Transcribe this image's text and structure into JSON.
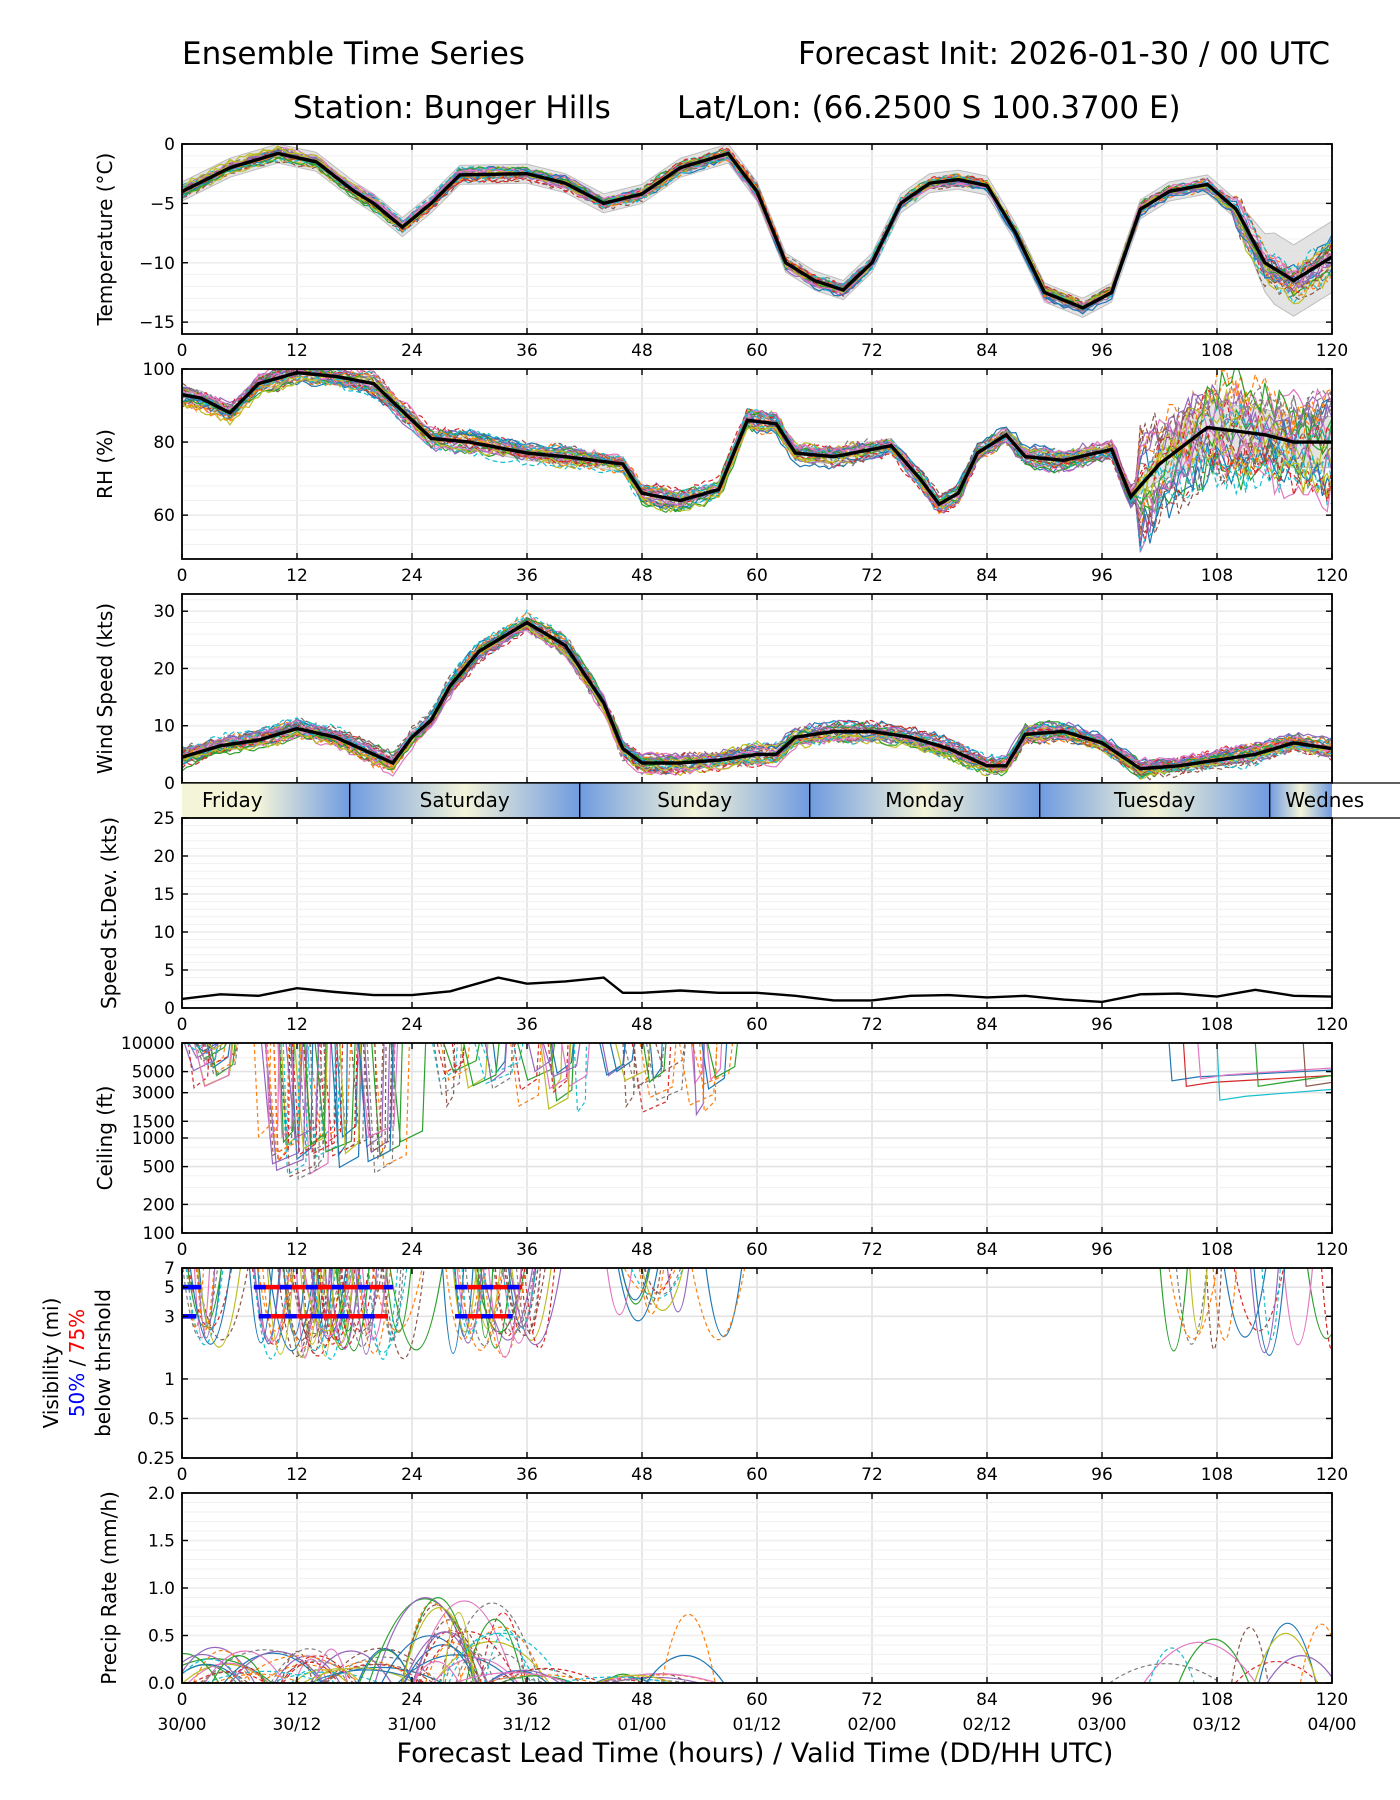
{
  "header": {
    "title_left": "Ensemble Time Series",
    "title_right": "Forecast Init: 2026-01-30 / 00 UTC",
    "station": "Station: Bunger Hills",
    "latlon": "Lat/Lon: (66.2500 S 100.3700 E)"
  },
  "x_axis": {
    "range": [
      0,
      120
    ],
    "ticks": [
      0,
      12,
      24,
      36,
      48,
      60,
      72,
      84,
      96,
      108,
      120
    ],
    "valid_times": [
      "30/00",
      "30/12",
      "31/00",
      "31/12",
      "01/00",
      "01/12",
      "02/00",
      "02/12",
      "03/00",
      "03/12",
      "04/00"
    ],
    "label": "Forecast Lead Time (hours) / Valid Time (DD/HH UTC)"
  },
  "day_bar": {
    "days": [
      {
        "name": "Friday",
        "start": 0,
        "end": 17.5
      },
      {
        "name": "Saturday",
        "start": 17.5,
        "end": 41.5
      },
      {
        "name": "Sunday",
        "start": 41.5,
        "end": 65.5
      },
      {
        "name": "Monday",
        "start": 65.5,
        "end": 89.5
      },
      {
        "name": "Tuesday",
        "start": 89.5,
        "end": 113.5
      },
      {
        "name": "Wednes",
        "start": 113.5,
        "end": 120
      }
    ],
    "colors": {
      "edge": "#6f9be0",
      "mid": "#f4f4d9"
    }
  },
  "colors": {
    "mean": "#000000",
    "spread": "#d9d9d9",
    "grid": "#e3e3e3",
    "vis_50": "#0000ff",
    "vis_75": "#ff0000",
    "members": [
      "#1f77b4",
      "#ff7f0e",
      "#2ca02c",
      "#d62728",
      "#9467bd",
      "#8c564b",
      "#e377c2",
      "#7f7f7f",
      "#bcbd22",
      "#17becf"
    ]
  },
  "chart_data": [
    {
      "id": "temperature",
      "type": "line",
      "ylabel": "Temperature (°C)",
      "ylim": [
        -16,
        0
      ],
      "yticks": [
        0,
        -5,
        -10,
        -15
      ],
      "ytick_labels": [
        "0",
        "−5",
        "−10",
        "−15"
      ],
      "xticks_shown": true,
      "mean": {
        "x": [
          0,
          5,
          10,
          14,
          18,
          20,
          23,
          26,
          29,
          36,
          40,
          44,
          48,
          52,
          57,
          60,
          63,
          66,
          69,
          72,
          75,
          78,
          81,
          84,
          87,
          90,
          94,
          97,
          100,
          103,
          107,
          110,
          113,
          116,
          120
        ],
        "y": [
          -4,
          -2,
          -0.8,
          -1.5,
          -4,
          -5,
          -7,
          -5,
          -2.6,
          -2.5,
          -3.3,
          -5,
          -4.2,
          -2.0,
          -0.8,
          -4,
          -10,
          -11.5,
          -12.3,
          -10,
          -5,
          -3.3,
          -3,
          -3.5,
          -7.5,
          -12.5,
          -13.8,
          -12.5,
          -5.5,
          -4,
          -3.4,
          -5.5,
          -10,
          -11.5,
          -9.5
        ]
      },
      "spread": 0.8,
      "spread_wide": {
        "from": 110,
        "width": 2.2
      },
      "member_noise": 0.6
    },
    {
      "id": "rh",
      "type": "line",
      "ylabel": "RH (%)",
      "ylim": [
        48,
        100
      ],
      "yticks": [
        100,
        80,
        60
      ],
      "ytick_labels": [
        "100",
        "80",
        "60"
      ],
      "xticks_shown": true,
      "mean": {
        "x": [
          0,
          2,
          5,
          8,
          12,
          16,
          20,
          22,
          26,
          30,
          36,
          40,
          46,
          48,
          52,
          56,
          59,
          62,
          64,
          68,
          74,
          77,
          79,
          81,
          83,
          86,
          88,
          92,
          97,
          99,
          102,
          105,
          107,
          110,
          113,
          116,
          120
        ],
        "y": [
          93,
          92,
          88,
          96,
          99,
          98,
          96,
          91,
          81,
          80,
          77,
          76,
          74,
          66,
          64,
          67,
          86,
          85,
          77,
          76,
          79,
          70,
          63,
          66,
          77,
          82,
          76,
          75,
          78,
          65,
          74,
          80,
          84,
          83,
          82,
          80,
          80
        ]
      },
      "spread": 2.0,
      "spread_wide": {
        "from": 100,
        "width": 5
      },
      "member_noise": 3.0
    },
    {
      "id": "wind",
      "type": "line",
      "ylabel": "Wind Speed (kts)",
      "ylim": [
        0,
        33
      ],
      "yticks": [
        30,
        20,
        10,
        0
      ],
      "ytick_labels": [
        "30",
        "20",
        "10",
        "0"
      ],
      "xticks_shown": false,
      "mean": {
        "x": [
          0,
          4,
          8,
          12,
          16,
          20,
          22,
          24,
          26,
          28,
          31,
          34,
          36,
          40,
          44,
          46,
          48,
          52,
          56,
          60,
          62,
          64,
          68,
          72,
          76,
          80,
          84,
          86,
          88,
          92,
          96,
          100,
          104,
          108,
          112,
          116,
          120
        ],
        "y": [
          4.5,
          6.5,
          7.5,
          9.5,
          8,
          5,
          3.5,
          8,
          11,
          17,
          23,
          26,
          28,
          24,
          14,
          6,
          3.5,
          3.5,
          4,
          5,
          5,
          8,
          9,
          9,
          8,
          6,
          3,
          3,
          8.5,
          9,
          7,
          2.5,
          3,
          4,
          5,
          7,
          6
        ]
      },
      "spread": 1.0,
      "member_noise": 1.8
    },
    {
      "id": "speed_stdev",
      "type": "line",
      "ylabel": "Speed St.Dev. (kts)",
      "ylim": [
        0,
        25
      ],
      "yticks": [
        25,
        20,
        15,
        10,
        5,
        0
      ],
      "ytick_labels": [
        "25",
        "20",
        "15",
        "10",
        "5",
        "0"
      ],
      "xticks_shown": true,
      "mean": {
        "x": [
          0,
          4,
          8,
          12,
          16,
          20,
          24,
          28,
          33,
          36,
          40,
          44,
          46,
          48,
          52,
          56,
          60,
          64,
          68,
          72,
          76,
          80,
          84,
          88,
          92,
          96,
          100,
          104,
          108,
          112,
          116,
          120
        ],
        "y": [
          1.2,
          1.8,
          1.6,
          2.6,
          2.1,
          1.7,
          1.7,
          2.2,
          4.0,
          3.2,
          3.5,
          4.0,
          2.0,
          2.0,
          2.3,
          2.0,
          2.0,
          1.6,
          1.0,
          1.0,
          1.6,
          1.7,
          1.4,
          1.6,
          1.1,
          0.8,
          1.8,
          1.9,
          1.5,
          2.4,
          1.6,
          1.5
        ]
      }
    },
    {
      "id": "ceiling",
      "type": "line",
      "scale": "log",
      "ylabel": "Ceiling (ft)",
      "ylim": [
        100,
        10000
      ],
      "yticks": [
        10000,
        5000,
        3000,
        1500,
        1000,
        500,
        200,
        100
      ],
      "ytick_labels": [
        "10000",
        "5000",
        "3000",
        "1500",
        "1000",
        "500",
        "200",
        "100"
      ],
      "xticks_shown": true
    },
    {
      "id": "visibility",
      "type": "line",
      "scale": "log",
      "ylabel": "Visibility (mi)",
      "ylabel_2a": "50%",
      "ylabel_2b": " / ",
      "ylabel_2c": "75%",
      "ylabel_3": "below thrshold",
      "ylim": [
        0.25,
        7
      ],
      "yticks": [
        7,
        5,
        3,
        1,
        0.5,
        0.25
      ],
      "ytick_labels": [
        "7",
        "5",
        "3",
        "1",
        "0.5",
        "0.25"
      ],
      "xticks_shown": true,
      "threshold_bars": [
        {
          "y": 5,
          "from": 0,
          "to": 2,
          "color": "vis_50"
        },
        {
          "y": 3,
          "from": 0,
          "to": 1.5,
          "color": "vis_50"
        },
        {
          "y": 5,
          "from": 7.5,
          "to": 22,
          "color": "vis_75"
        },
        {
          "y": 3,
          "from": 8,
          "to": 21.5,
          "color": "vis_75"
        },
        {
          "y": 5,
          "from": 28.5,
          "to": 35.5,
          "color": "vis_75"
        },
        {
          "y": 3,
          "from": 28.5,
          "to": 34.5,
          "color": "vis_75"
        }
      ]
    },
    {
      "id": "precip",
      "type": "line",
      "ylabel": "Precip Rate (mm/h)",
      "ylim": [
        0,
        2.0
      ],
      "yticks": [
        2.0,
        1.5,
        1.0,
        0.5,
        0.0
      ],
      "ytick_labels": [
        "2.0",
        "1.5",
        "1.0",
        "0.5",
        "0.0"
      ],
      "xticks_shown": true
    }
  ]
}
